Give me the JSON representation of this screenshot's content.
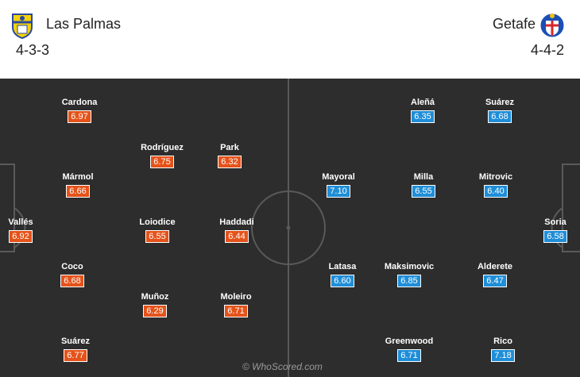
{
  "home": {
    "name": "Las Palmas",
    "formation": "4-3-3",
    "crest_icon": "las-palmas-crest-icon",
    "rating_color": "#e5531a",
    "players": [
      {
        "name": "Vallés",
        "rating": "6.92"
      },
      {
        "name": "Cardona",
        "rating": "6.97"
      },
      {
        "name": "Mármol",
        "rating": "6.66"
      },
      {
        "name": "Coco",
        "rating": "6.68"
      },
      {
        "name": "Suárez",
        "rating": "6.77"
      },
      {
        "name": "Rodríguez",
        "rating": "6.75"
      },
      {
        "name": "Loiodice",
        "rating": "6.55"
      },
      {
        "name": "Muñoz",
        "rating": "6.29"
      },
      {
        "name": "Park",
        "rating": "6.32"
      },
      {
        "name": "Haddadi",
        "rating": "6.44"
      },
      {
        "name": "Moleiro",
        "rating": "6.71"
      }
    ]
  },
  "away": {
    "name": "Getafe",
    "formation": "4-4-2",
    "crest_icon": "getafe-crest-icon",
    "rating_color": "#1f8ed8",
    "players": [
      {
        "name": "Soria",
        "rating": "6.58"
      },
      {
        "name": "Suárez",
        "rating": "6.68"
      },
      {
        "name": "Mitrovic",
        "rating": "6.40"
      },
      {
        "name": "Alderete",
        "rating": "6.47"
      },
      {
        "name": "Rico",
        "rating": "7.18"
      },
      {
        "name": "Aleñá",
        "rating": "6.35"
      },
      {
        "name": "Milla",
        "rating": "6.55"
      },
      {
        "name": "Maksimovic",
        "rating": "6.85"
      },
      {
        "name": "Greenwood",
        "rating": "6.71"
      },
      {
        "name": "Mayoral",
        "rating": "7.10"
      },
      {
        "name": "Latasa",
        "rating": "6.60"
      }
    ]
  },
  "watermark": "© WhoScored.com",
  "pitch_color": "#2d2d2d"
}
